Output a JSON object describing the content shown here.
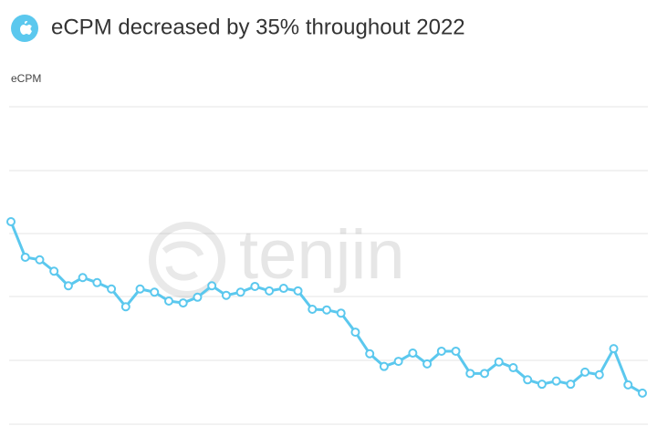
{
  "chart_data": {
    "type": "line",
    "title": "eCPM decreased by 35% throughout 2022",
    "y_label": "eCPM",
    "watermark": "tenjin",
    "categories": [
      null,
      null,
      null,
      null,
      null,
      null,
      null,
      null,
      null,
      null,
      null,
      null,
      null,
      null,
      null,
      null,
      null,
      null,
      null,
      null,
      null,
      null,
      null,
      null,
      null,
      null,
      null,
      null,
      null,
      null,
      null,
      null,
      null,
      null,
      null,
      null,
      null,
      null,
      null,
      null,
      null,
      null,
      null,
      null,
      null
    ],
    "series": [
      {
        "name": "eCPM",
        "color": "#5bc8ee",
        "values": [
          3.19,
          2.63,
          2.59,
          2.41,
          2.18,
          2.31,
          2.23,
          2.13,
          1.85,
          2.13,
          2.08,
          1.94,
          1.91,
          2.0,
          2.18,
          2.03,
          2.08,
          2.17,
          2.1,
          2.14,
          2.1,
          1.81,
          1.8,
          1.75,
          1.45,
          1.11,
          0.91,
          0.99,
          1.12,
          0.95,
          1.15,
          1.15,
          0.8,
          0.8,
          0.98,
          0.89,
          0.7,
          0.63,
          0.68,
          0.63,
          0.82,
          0.78,
          1.19,
          0.62,
          0.49
        ]
      }
    ],
    "ylim": [
      0,
      5
    ]
  }
}
